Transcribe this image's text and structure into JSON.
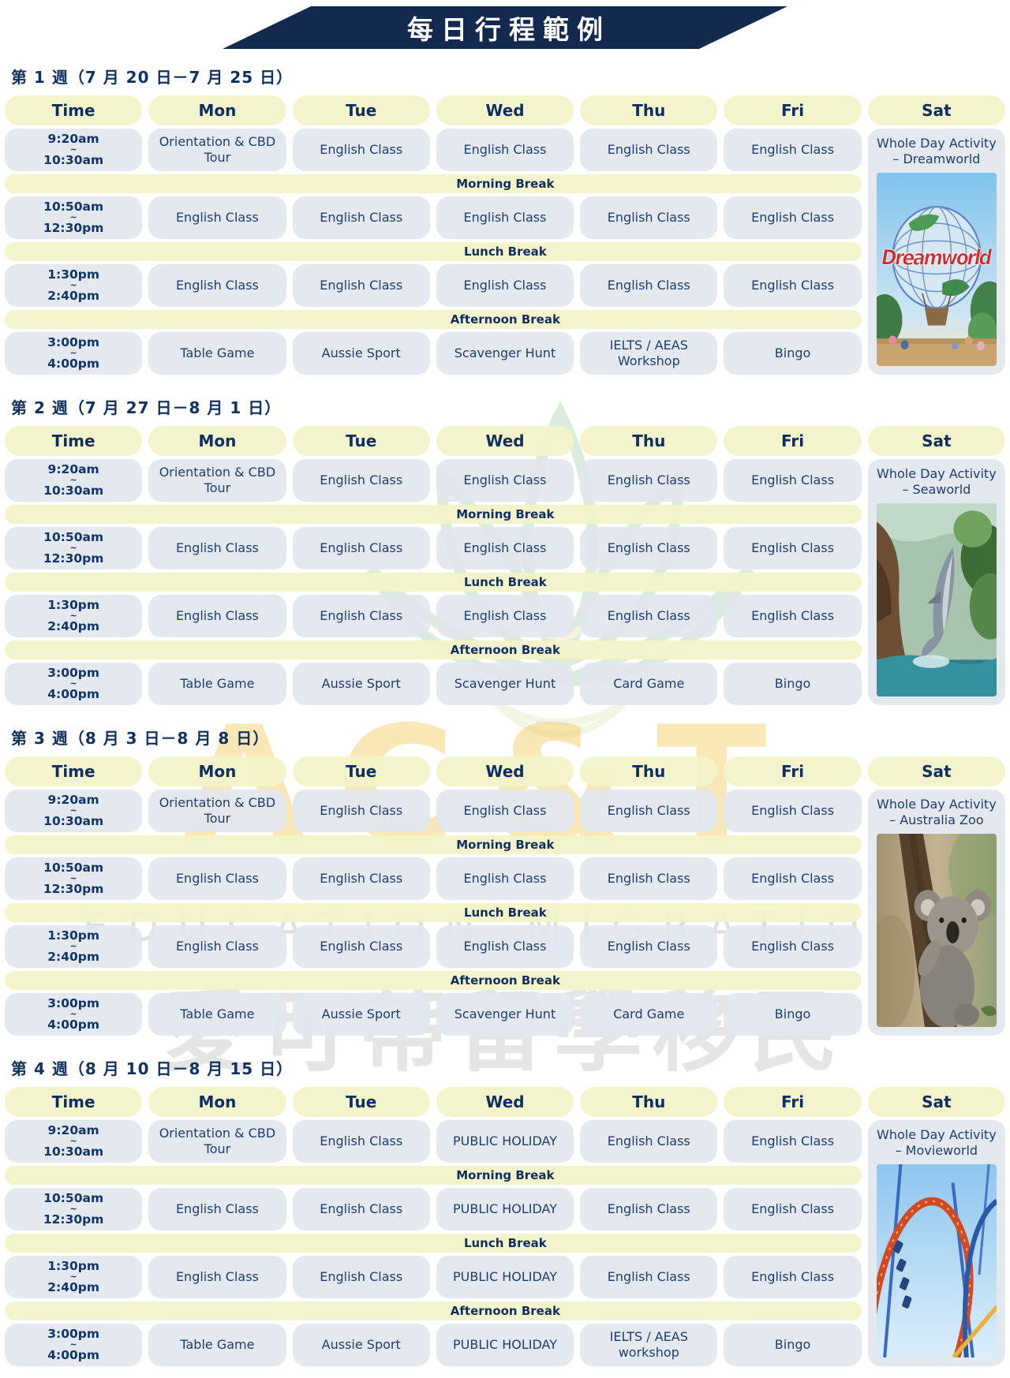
{
  "banner": {
    "title": "每日行程範例"
  },
  "columns": [
    "Time",
    "Mon",
    "Tue",
    "Wed",
    "Thu",
    "Fri",
    "Sat"
  ],
  "weeks": [
    {
      "heading": "第 1 週（7 月 20 日－7 月 25 日）",
      "saturday": {
        "label": "Whole Day Activity – Dreamworld",
        "image": "dreamworld"
      },
      "rows": [
        {
          "type": "slot",
          "start": "9:20am",
          "tilde": "~",
          "end": "10:30am",
          "cells": [
            "Orientation & CBD Tour",
            "English Class",
            "English Class",
            "English Class",
            "English Class"
          ]
        },
        {
          "type": "break",
          "label": "Morning Break"
        },
        {
          "type": "slot",
          "start": "10:50am",
          "tilde": "~",
          "end": "12:30pm",
          "cells": [
            "English Class",
            "English Class",
            "English Class",
            "English Class",
            "English Class"
          ]
        },
        {
          "type": "break",
          "label": "Lunch Break"
        },
        {
          "type": "slot",
          "start": "1:30pm",
          "tilde": "~",
          "end": "2:40pm",
          "cells": [
            "English Class",
            "English Class",
            "English Class",
            "English Class",
            "English Class"
          ]
        },
        {
          "type": "break",
          "label": "Afternoon Break"
        },
        {
          "type": "slot",
          "start": "3:00pm",
          "tilde": "~",
          "end": "4:00pm",
          "cells": [
            "Table Game",
            "Aussie Sport",
            "Scavenger Hunt",
            "IELTS / AEAS Workshop",
            "Bingo"
          ]
        }
      ]
    },
    {
      "heading": "第 2 週（7 月 27 日－8 月 1 日）",
      "saturday": {
        "label": "Whole Day Activity – Seaworld",
        "image": "seaworld"
      },
      "rows": [
        {
          "type": "slot",
          "start": "9:20am",
          "tilde": "~",
          "end": "10:30am",
          "cells": [
            "Orientation & CBD Tour",
            "English Class",
            "English Class",
            "English Class",
            "English Class"
          ]
        },
        {
          "type": "break",
          "label": "Morning Break"
        },
        {
          "type": "slot",
          "start": "10:50am",
          "tilde": "~",
          "end": "12:30pm",
          "cells": [
            "English Class",
            "English Class",
            "English Class",
            "English Class",
            "English Class"
          ]
        },
        {
          "type": "break",
          "label": "Lunch Break"
        },
        {
          "type": "slot",
          "start": "1:30pm",
          "tilde": "~",
          "end": "2:40pm",
          "cells": [
            "English Class",
            "English Class",
            "English Class",
            "English Class",
            "English Class"
          ]
        },
        {
          "type": "break",
          "label": "Afternoon Break"
        },
        {
          "type": "slot",
          "start": "3:00pm",
          "tilde": "~",
          "end": "4:00pm",
          "cells": [
            "Table Game",
            "Aussie Sport",
            "Scavenger Hunt",
            "Card Game",
            "Bingo"
          ]
        }
      ]
    },
    {
      "heading": "第 3 週（8 月 3 日－8 月 8 日）",
      "saturday": {
        "label": "Whole Day Activity – Australia Zoo",
        "image": "australiazoo"
      },
      "rows": [
        {
          "type": "slot",
          "start": "9:20am",
          "tilde": "~",
          "end": "10:30am",
          "cells": [
            "Orientation & CBD Tour",
            "English Class",
            "English Class",
            "English Class",
            "English Class"
          ]
        },
        {
          "type": "break",
          "label": "Morning Break"
        },
        {
          "type": "slot",
          "start": "10:50am",
          "tilde": "~",
          "end": "12:30pm",
          "cells": [
            "English Class",
            "English Class",
            "English Class",
            "English Class",
            "English Class"
          ]
        },
        {
          "type": "break",
          "label": "Lunch Break"
        },
        {
          "type": "slot",
          "start": "1:30pm",
          "tilde": "~",
          "end": "2:40pm",
          "cells": [
            "English Class",
            "English Class",
            "English Class",
            "English Class",
            "English Class"
          ]
        },
        {
          "type": "break",
          "label": "Afternoon Break"
        },
        {
          "type": "slot",
          "start": "3:00pm",
          "tilde": "~",
          "end": "4:00pm",
          "cells": [
            "Table Game",
            "Aussie Sport",
            "Scavenger Hunt",
            "Card Game",
            "Bingo"
          ]
        }
      ]
    },
    {
      "heading": "第 4 週（8 月 10 日－8 月 15 日）",
      "saturday": {
        "label": "Whole Day Activity – Movieworld",
        "image": "movieworld"
      },
      "rows": [
        {
          "type": "slot",
          "start": "9:20am",
          "tilde": "~",
          "end": "10:30am",
          "cells": [
            "Orientation & CBD Tour",
            "English Class",
            "PUBLIC HOLIDAY",
            "English Class",
            "English Class"
          ]
        },
        {
          "type": "break",
          "label": "Morning Break"
        },
        {
          "type": "slot",
          "start": "10:50am",
          "tilde": "~",
          "end": "12:30pm",
          "cells": [
            "English Class",
            "English Class",
            "PUBLIC HOLIDAY",
            "English Class",
            "English Class"
          ]
        },
        {
          "type": "break",
          "label": "Lunch Break"
        },
        {
          "type": "slot",
          "start": "1:30pm",
          "tilde": "~",
          "end": "2:40pm",
          "cells": [
            "English Class",
            "English Class",
            "PUBLIC HOLIDAY",
            "English Class",
            "English Class"
          ]
        },
        {
          "type": "break",
          "label": "Afternoon Break"
        },
        {
          "type": "slot",
          "start": "3:00pm",
          "tilde": "~",
          "end": "4:00pm",
          "cells": [
            "Table Game",
            "Aussie Sport",
            "PUBLIC HOLIDAY",
            "IELTS / AEAS workshop",
            "Bingo"
          ]
        }
      ]
    }
  ],
  "watermark": {
    "brand": "AC&T",
    "education": "EDUCATION MIGRATION",
    "chinese": "愛可蒂留學移民"
  },
  "colors": {
    "navy": "#14294e",
    "headerYellow": "#f3f3c9",
    "cellGray": "#e2e7ee",
    "textNavy": "#1d3e6e",
    "dreamworldRed": "#d7282f"
  }
}
